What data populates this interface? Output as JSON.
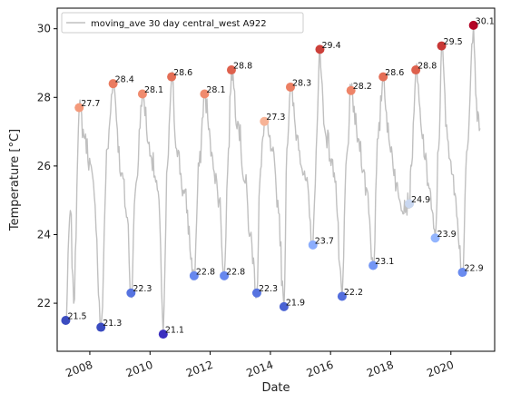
{
  "chart_data": {
    "type": "line",
    "xlabel": "Date",
    "ylabel": "Temperature [°C]",
    "xlim": [
      "2006-12-01",
      "2021-06-15"
    ],
    "ylim": [
      20.6,
      30.6
    ],
    "x_ticks": [
      "2008",
      "2010",
      "2012",
      "2014",
      "2016",
      "2018",
      "2020"
    ],
    "y_ticks": [
      "22",
      "24",
      "26",
      "28",
      "30"
    ],
    "grid": false,
    "legend": {
      "placement": "top-left",
      "entries": [
        "moving_ave 30 day central_west A922"
      ]
    },
    "line_color": "#c0c0c0",
    "series": [
      {
        "name": "moving_ave 30 day central_west A922",
        "key_points": [
          {
            "date": "2007-03-15",
            "value": 21.5
          },
          {
            "date": "2007-05-10",
            "value": 24.7
          },
          {
            "date": "2007-06-20",
            "value": 22.0
          },
          {
            "date": "2007-08-25",
            "value": 27.7
          },
          {
            "date": "2007-11-01",
            "value": 26.8
          },
          {
            "date": "2008-02-15",
            "value": 25.5
          },
          {
            "date": "2008-05-15",
            "value": 21.3
          },
          {
            "date": "2008-08-01",
            "value": 26.5
          },
          {
            "date": "2008-10-10",
            "value": 28.4
          },
          {
            "date": "2009-01-20",
            "value": 25.8
          },
          {
            "date": "2009-04-01",
            "value": 24.5
          },
          {
            "date": "2009-05-15",
            "value": 22.3
          },
          {
            "date": "2009-07-15",
            "value": 25.5
          },
          {
            "date": "2009-10-01",
            "value": 28.1
          },
          {
            "date": "2010-01-10",
            "value": 26.3
          },
          {
            "date": "2010-04-20",
            "value": 25.0
          },
          {
            "date": "2010-06-10",
            "value": 21.1
          },
          {
            "date": "2010-08-01",
            "value": 26.0
          },
          {
            "date": "2010-09-20",
            "value": 28.6
          },
          {
            "date": "2010-11-20",
            "value": 26.5
          },
          {
            "date": "2011-02-20",
            "value": 25.2
          },
          {
            "date": "2011-06-20",
            "value": 22.8
          },
          {
            "date": "2011-08-20",
            "value": 26.0
          },
          {
            "date": "2011-10-25",
            "value": 28.1
          },
          {
            "date": "2012-01-20",
            "value": 26.4
          },
          {
            "date": "2012-04-20",
            "value": 25.0
          },
          {
            "date": "2012-06-20",
            "value": 22.8
          },
          {
            "date": "2012-08-10",
            "value": 26.5
          },
          {
            "date": "2012-09-15",
            "value": 28.8
          },
          {
            "date": "2012-12-01",
            "value": 27.3
          },
          {
            "date": "2013-03-01",
            "value": 25.5
          },
          {
            "date": "2013-05-01",
            "value": 24.0
          },
          {
            "date": "2013-07-20",
            "value": 22.3
          },
          {
            "date": "2013-08-25",
            "value": 25.5
          },
          {
            "date": "2013-10-20",
            "value": 27.3
          },
          {
            "date": "2014-01-15",
            "value": 26.5
          },
          {
            "date": "2014-04-01",
            "value": 25.0
          },
          {
            "date": "2014-06-15",
            "value": 21.9
          },
          {
            "date": "2014-07-20",
            "value": 26.5
          },
          {
            "date": "2014-09-01",
            "value": 28.3
          },
          {
            "date": "2014-11-20",
            "value": 26.9
          },
          {
            "date": "2015-03-01",
            "value": 25.6
          },
          {
            "date": "2015-06-01",
            "value": 23.7
          },
          {
            "date": "2015-07-20",
            "value": 27.0
          },
          {
            "date": "2015-08-25",
            "value": 29.4
          },
          {
            "date": "2015-10-20",
            "value": 27.1
          },
          {
            "date": "2016-02-15",
            "value": 25.8
          },
          {
            "date": "2016-05-20",
            "value": 22.2
          },
          {
            "date": "2016-07-15",
            "value": 26.3
          },
          {
            "date": "2016-09-05",
            "value": 28.2
          },
          {
            "date": "2016-12-01",
            "value": 26.8
          },
          {
            "date": "2017-03-20",
            "value": 25.3
          },
          {
            "date": "2017-06-01",
            "value": 23.1
          },
          {
            "date": "2017-08-01",
            "value": 26.8
          },
          {
            "date": "2017-10-01",
            "value": 28.6
          },
          {
            "date": "2017-12-20",
            "value": 26.6
          },
          {
            "date": "2018-04-20",
            "value": 25.0
          },
          {
            "date": "2018-08-15",
            "value": 24.9
          },
          {
            "date": "2018-09-10",
            "value": 26.0
          },
          {
            "date": "2018-11-01",
            "value": 28.8
          },
          {
            "date": "2019-01-20",
            "value": 26.8
          },
          {
            "date": "2019-04-01",
            "value": 25.5
          },
          {
            "date": "2019-06-25",
            "value": 23.9
          },
          {
            "date": "2019-08-05",
            "value": 26.5
          },
          {
            "date": "2019-09-10",
            "value": 29.5
          },
          {
            "date": "2019-11-20",
            "value": 26.8
          },
          {
            "date": "2020-02-20",
            "value": 25.2
          },
          {
            "date": "2020-05-20",
            "value": 22.9
          },
          {
            "date": "2020-07-20",
            "value": 26.5
          },
          {
            "date": "2020-10-01",
            "value": 30.1
          },
          {
            "date": "2020-11-15",
            "value": 27.3
          },
          {
            "date": "2020-12-20",
            "value": 27.1
          }
        ]
      }
    ],
    "extrema": [
      {
        "date": "2007-03-15",
        "value": 21.5,
        "label": "21.5",
        "color": "#3b4cc0"
      },
      {
        "date": "2007-08-25",
        "value": 27.7,
        "label": "27.7",
        "color": "#f49a7b"
      },
      {
        "date": "2008-05-15",
        "value": 21.3,
        "label": "21.3",
        "color": "#3a4bc0"
      },
      {
        "date": "2008-10-10",
        "value": 28.4,
        "label": "28.4",
        "color": "#ea7b60"
      },
      {
        "date": "2009-05-15",
        "value": 22.3,
        "label": "22.3",
        "color": "#5673e0"
      },
      {
        "date": "2009-10-01",
        "value": 28.1,
        "label": "28.1",
        "color": "#f08b6e"
      },
      {
        "date": "2010-06-10",
        "value": 21.1,
        "label": "21.1",
        "color": "#3b2fbf"
      },
      {
        "date": "2010-09-20",
        "value": 28.6,
        "label": "28.6",
        "color": "#e46e56"
      },
      {
        "date": "2011-06-20",
        "value": 22.8,
        "label": "22.8",
        "color": "#6788ee"
      },
      {
        "date": "2011-10-25",
        "value": 28.1,
        "label": "28.1",
        "color": "#f08b6e"
      },
      {
        "date": "2012-06-20",
        "value": 22.8,
        "label": "22.8",
        "color": "#6788ee"
      },
      {
        "date": "2012-09-15",
        "value": 28.8,
        "label": "28.8",
        "color": "#de614d"
      },
      {
        "date": "2013-07-20",
        "value": 22.3,
        "label": "22.3",
        "color": "#5673e0"
      },
      {
        "date": "2013-10-20",
        "value": 27.3,
        "label": "27.3",
        "color": "#f7b396"
      },
      {
        "date": "2014-06-15",
        "value": 21.9,
        "label": "21.9",
        "color": "#4a63d3"
      },
      {
        "date": "2014-09-01",
        "value": 28.3,
        "label": "28.3",
        "color": "#ec7f63"
      },
      {
        "date": "2015-06-01",
        "value": 23.7,
        "label": "23.7",
        "color": "#8badfd"
      },
      {
        "date": "2015-08-25",
        "value": 29.4,
        "label": "29.4",
        "color": "#cc403a"
      },
      {
        "date": "2016-05-20",
        "value": 22.2,
        "label": "22.2",
        "color": "#536edd"
      },
      {
        "date": "2016-09-05",
        "value": 28.2,
        "label": "28.2",
        "color": "#ee8468"
      },
      {
        "date": "2017-06-01",
        "value": 23.1,
        "label": "23.1",
        "color": "#7396f5"
      },
      {
        "date": "2017-10-01",
        "value": 28.6,
        "label": "28.6",
        "color": "#e46e56"
      },
      {
        "date": "2018-08-15",
        "value": 24.9,
        "label": "24.9",
        "color": "#c9d7f0"
      },
      {
        "date": "2018-11-01",
        "value": 28.8,
        "label": "28.8",
        "color": "#de614d"
      },
      {
        "date": "2019-06-25",
        "value": 23.9,
        "label": "23.9",
        "color": "#93b5fe"
      },
      {
        "date": "2019-09-10",
        "value": 29.5,
        "label": "29.5",
        "color": "#c83836"
      },
      {
        "date": "2020-05-20",
        "value": 22.9,
        "label": "22.9",
        "color": "#6a8bef"
      },
      {
        "date": "2020-10-01",
        "value": 30.1,
        "label": "30.1",
        "color": "#b40426"
      }
    ]
  }
}
